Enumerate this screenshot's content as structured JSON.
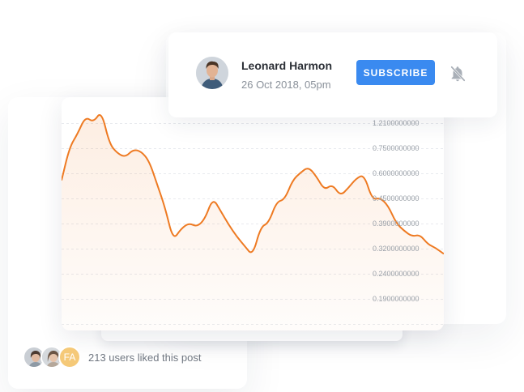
{
  "author": {
    "name": "Leonard Harmon",
    "date": "26 Oct 2018, 05pm"
  },
  "subscribe_label": "SUBSCRIBE",
  "likes": {
    "avatar_initials": "FA",
    "text": "213 users liked this post"
  },
  "colors": {
    "accent": "#3a8af0",
    "line": "#ee7a22",
    "initials_bg": "#f5c978"
  },
  "chart_data": {
    "type": "area",
    "y_tick_labels": [
      "1.2100000000",
      "0.7500000000",
      "0.6000000000",
      "0.4500000000",
      "0.3900000000",
      "0.3200000000",
      "0.2400000000",
      "0.1900000000"
    ],
    "ylim": [
      0.12,
      1.2
    ],
    "grid": true,
    "values": [
      0.77,
      0.94,
      1.01,
      1.1,
      1.07,
      1.13,
      0.96,
      0.91,
      0.89,
      0.93,
      0.92,
      0.87,
      0.75,
      0.63,
      0.46,
      0.52,
      0.55,
      0.53,
      0.57,
      0.68,
      0.61,
      0.54,
      0.48,
      0.43,
      0.38,
      0.53,
      0.55,
      0.66,
      0.67,
      0.77,
      0.81,
      0.84,
      0.79,
      0.72,
      0.75,
      0.69,
      0.73,
      0.78,
      0.8,
      0.67,
      0.68,
      0.64,
      0.55,
      0.51,
      0.48,
      0.49,
      0.44,
      0.42,
      0.39
    ]
  }
}
